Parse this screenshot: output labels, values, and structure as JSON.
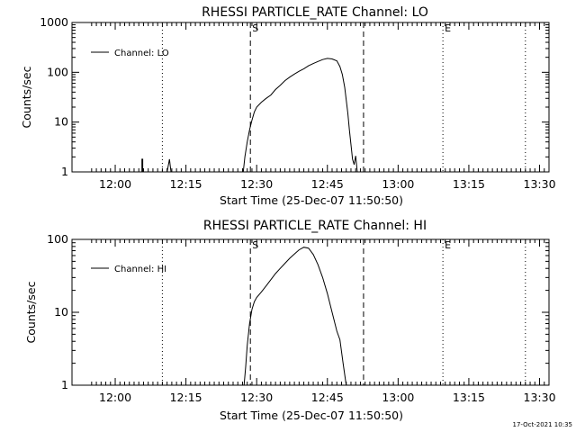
{
  "timestamp": "17-Oct-2021 10:35",
  "chart_data": [
    {
      "type": "line",
      "title": "RHESSI PARTICLE_RATE Channel: LO",
      "xlabel": "Start Time (25-Dec-07 11:50:50)",
      "ylabel": "Counts/sec",
      "yscale": "log",
      "ylim": [
        1,
        1000
      ],
      "xlim": [
        "11:50:50",
        "13:32:00"
      ],
      "x_ticks": [
        "12:00",
        "12:15",
        "12:30",
        "12:45",
        "13:00",
        "13:15",
        "13:30"
      ],
      "y_ticks": [
        "1",
        "10",
        "100",
        "1000"
      ],
      "legend": {
        "label": "Channel: LO",
        "position": "top-left"
      },
      "markers": [
        {
          "time": "12:10:00",
          "style": "dotted",
          "label": ""
        },
        {
          "time": "12:28:40",
          "style": "dashed",
          "label": "S"
        },
        {
          "time": "12:52:40",
          "style": "dashed",
          "label": ""
        },
        {
          "time": "13:09:30",
          "style": "dotted",
          "label": "E"
        },
        {
          "time": "13:27:00",
          "style": "dotted",
          "label": ""
        }
      ],
      "series": [
        {
          "name": "Channel: LO",
          "segments": [
            {
              "x": [
                "12:05:40",
                "12:05:40",
                "12:05:50",
                "12:05:50"
              ],
              "y": [
                1,
                1.8,
                1.8,
                1
              ]
            },
            {
              "x": [
                "12:11:00",
                "12:11:30",
                "12:11:50"
              ],
              "y": [
                1,
                1.8,
                1
              ]
            },
            {
              "x": [
                "12:27:10",
                "12:27:30",
                "12:28:00",
                "12:28:30",
                "12:29:00",
                "12:29:30",
                "12:30:00",
                "12:31:00",
                "12:32:00",
                "12:33:00",
                "12:34:00",
                "12:35:00",
                "12:36:00",
                "12:37:00",
                "12:38:00",
                "12:39:00",
                "12:40:00",
                "12:41:00",
                "12:42:00",
                "12:43:00",
                "12:44:00",
                "12:45:00",
                "12:46:00",
                "12:47:00",
                "12:47:40",
                "12:48:10",
                "12:48:40",
                "12:49:20",
                "12:49:40",
                "12:50:00",
                "12:50:20",
                "12:50:40",
                "12:51:00",
                "12:51:20"
              ],
              "y": [
                1,
                2,
                4,
                7,
                11,
                16,
                20,
                25,
                30,
                35,
                45,
                55,
                68,
                80,
                92,
                105,
                118,
                135,
                150,
                165,
                180,
                190,
                185,
                170,
                130,
                90,
                50,
                15,
                7,
                3.5,
                1.8,
                1.4,
                2.1,
                1.0
              ]
            }
          ]
        }
      ]
    },
    {
      "type": "line",
      "title": "RHESSI PARTICLE_RATE Channel: HI",
      "xlabel": "Start Time (25-Dec-07 11:50:50)",
      "ylabel": "Counts/sec",
      "yscale": "log",
      "ylim": [
        1,
        100
      ],
      "xlim": [
        "11:50:50",
        "13:32:00"
      ],
      "x_ticks": [
        "12:00",
        "12:15",
        "12:30",
        "12:45",
        "13:00",
        "13:15",
        "13:30"
      ],
      "y_ticks": [
        "1",
        "10",
        "100"
      ],
      "legend": {
        "label": "Channel: HI",
        "position": "top-left"
      },
      "markers": [
        {
          "time": "12:10:00",
          "style": "dotted",
          "label": ""
        },
        {
          "time": "12:28:40",
          "style": "dashed",
          "label": "S"
        },
        {
          "time": "12:52:40",
          "style": "dashed",
          "label": ""
        },
        {
          "time": "13:09:30",
          "style": "dotted",
          "label": "E"
        },
        {
          "time": "13:27:00",
          "style": "dotted",
          "label": ""
        }
      ],
      "series": [
        {
          "name": "Channel: HI",
          "segments": [
            {
              "x": [
                "12:27:20",
                "12:27:40",
                "12:28:00",
                "12:28:30",
                "12:29:00",
                "12:29:30",
                "12:30:00",
                "12:31:00",
                "12:32:00",
                "12:33:00",
                "12:34:00",
                "12:35:00",
                "12:36:00",
                "12:37:00",
                "12:38:00",
                "12:39:00",
                "12:40:00",
                "12:41:00",
                "12:42:00",
                "12:43:00",
                "12:44:00",
                "12:45:00",
                "12:46:00",
                "12:47:00",
                "12:47:40",
                "12:48:20",
                "12:49:00"
              ],
              "y": [
                1,
                1.8,
                3.5,
                7,
                11,
                14,
                16,
                19,
                23,
                28,
                34,
                40,
                47,
                55,
                63,
                72,
                78,
                76,
                62,
                45,
                30,
                18,
                10,
                5.5,
                4.2,
                2,
                1
              ]
            }
          ]
        }
      ]
    }
  ]
}
